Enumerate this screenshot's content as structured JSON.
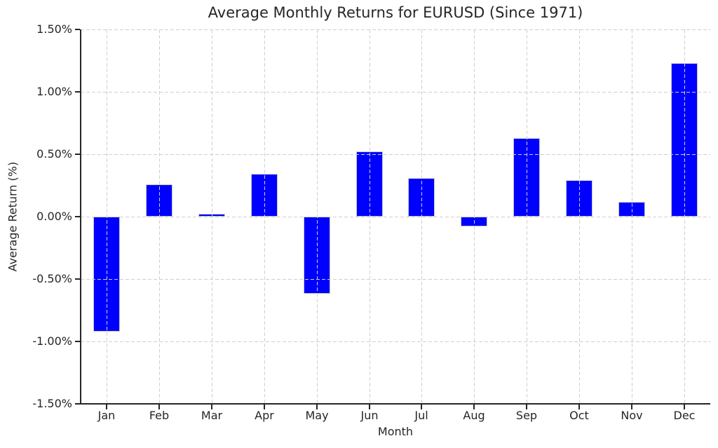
{
  "chart_data": {
    "type": "bar",
    "title": "Average Monthly Returns for EURUSD (Since 1971)",
    "xlabel": "Month",
    "ylabel": "Average Return (%)",
    "categories": [
      "Jan",
      "Feb",
      "Mar",
      "Apr",
      "May",
      "Jun",
      "Jul",
      "Aug",
      "Sep",
      "Oct",
      "Nov",
      "Dec"
    ],
    "values": [
      -0.92,
      0.26,
      0.02,
      0.34,
      -0.62,
      0.52,
      0.31,
      -0.08,
      0.63,
      0.29,
      0.12,
      1.23
    ],
    "unit": "%",
    "ylim": [
      -1.5,
      1.5
    ],
    "yticks": [
      {
        "value": 1.5,
        "label": "1.50%"
      },
      {
        "value": 1.0,
        "label": "1.00%"
      },
      {
        "value": 0.5,
        "label": "0.50%"
      },
      {
        "value": 0.0,
        "label": "0.00%"
      },
      {
        "value": -0.5,
        "label": "-0.50%"
      },
      {
        "value": -1.0,
        "label": "-1.00%"
      },
      {
        "value": -1.5,
        "label": "-1.50%"
      }
    ],
    "grid": true,
    "grid_style": "dashed",
    "legend": "none",
    "colors": {
      "bar": "#0000ff",
      "bar_edge": "#c8c8c8",
      "grid": "#cfcfcf",
      "axis": "#262626",
      "text": "#262626",
      "background": "#ffffff"
    }
  }
}
